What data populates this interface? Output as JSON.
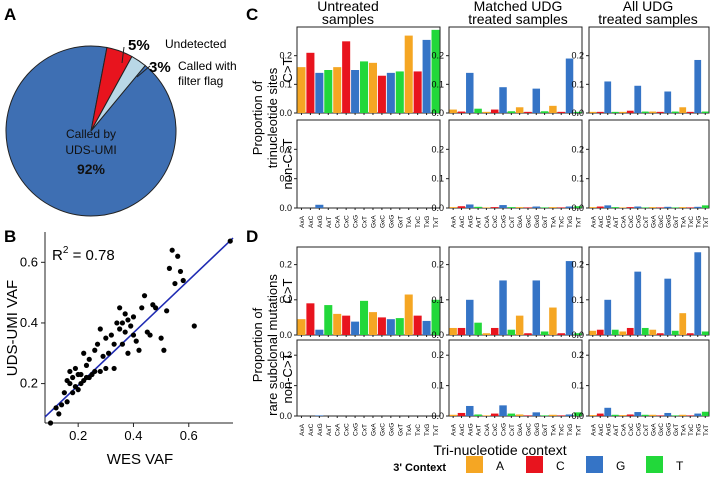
{
  "panel_labels": {
    "a": "A",
    "b": "B",
    "c": "C",
    "d": "D"
  },
  "colors": {
    "A": "#f5a623",
    "C": "#e8141e",
    "G": "#3574c6",
    "T": "#22d83a",
    "pie_called": "#3e6fb3",
    "pie_undetected": "#e8141e",
    "pie_flag": "#b9d7e6",
    "regression_line": "#1f2bb3",
    "points": "#000000"
  },
  "contexts": [
    "AxA",
    "AxC",
    "AxG",
    "AxT",
    "CxA",
    "CxC",
    "CxG",
    "CxT",
    "GxA",
    "GxC",
    "GxG",
    "GxT",
    "TxA",
    "TxC",
    "TxG",
    "TxT"
  ],
  "column_titles": [
    "Untreated samples",
    "Matched UDG treated samples",
    "All UDG treated samples"
  ],
  "x_axis_title": "Tri-nucleotide context",
  "legend": {
    "title": "3' Context",
    "items": [
      "A",
      "C",
      "G",
      "T"
    ]
  },
  "c_ylabel": {
    "line1": "Proportion of",
    "line2": "trinucleotide sites"
  },
  "d_ylabel": {
    "line1": "Proportion of",
    "line2": "rare subclonal mutations"
  },
  "row_labels": {
    "ct": "C>T",
    "nonct": "non-C>T"
  },
  "chart_data": [
    {
      "type": "pie",
      "panel": "A",
      "slices": [
        {
          "label": "Called by UDS-UMI",
          "value": 92,
          "pct_text": "92%"
        },
        {
          "label": "Undetected",
          "value": 5,
          "pct_text": "5%"
        },
        {
          "label": "Called with filter flag",
          "value": 3,
          "pct_text": "3%"
        }
      ],
      "label_lines": {
        "called": [
          "Called by",
          "UDS-UMI"
        ],
        "flag": [
          "Called with",
          "filter flag"
        ],
        "undetected": [
          "Undetected"
        ]
      }
    },
    {
      "type": "scatter",
      "panel": "B",
      "xlabel": "WES VAF",
      "ylabel": "UDS-UMI VAF",
      "annotation": "R",
      "annotation_sup": "2",
      "annotation_value": " = 0.78",
      "xlim": [
        0.08,
        0.76
      ],
      "ylim": [
        0.07,
        0.7
      ],
      "xticks": [
        0.2,
        0.4,
        0.6
      ],
      "yticks": [
        0.2,
        0.4,
        0.6
      ],
      "xtick_labels": [
        "0.2",
        "0.4",
        "0.6"
      ],
      "ytick_labels": [
        "0.2",
        "0.4",
        "0.6"
      ],
      "fit_line": {
        "x": [
          0.08,
          0.76
        ],
        "y": [
          0.09,
          0.68
        ]
      },
      "points": [
        [
          0.1,
          0.07
        ],
        [
          0.12,
          0.12
        ],
        [
          0.13,
          0.1
        ],
        [
          0.14,
          0.13
        ],
        [
          0.15,
          0.17
        ],
        [
          0.16,
          0.14
        ],
        [
          0.16,
          0.21
        ],
        [
          0.17,
          0.24
        ],
        [
          0.17,
          0.2
        ],
        [
          0.18,
          0.22
        ],
        [
          0.18,
          0.17
        ],
        [
          0.19,
          0.19
        ],
        [
          0.19,
          0.25
        ],
        [
          0.2,
          0.18
        ],
        [
          0.2,
          0.23
        ],
        [
          0.21,
          0.2
        ],
        [
          0.21,
          0.23
        ],
        [
          0.22,
          0.21
        ],
        [
          0.22,
          0.3
        ],
        [
          0.23,
          0.22
        ],
        [
          0.23,
          0.26
        ],
        [
          0.24,
          0.22
        ],
        [
          0.24,
          0.28
        ],
        [
          0.25,
          0.23
        ],
        [
          0.26,
          0.31
        ],
        [
          0.26,
          0.24
        ],
        [
          0.27,
          0.33
        ],
        [
          0.28,
          0.24
        ],
        [
          0.28,
          0.38
        ],
        [
          0.29,
          0.29
        ],
        [
          0.3,
          0.25
        ],
        [
          0.3,
          0.35
        ],
        [
          0.31,
          0.3
        ],
        [
          0.32,
          0.36
        ],
        [
          0.33,
          0.25
        ],
        [
          0.33,
          0.33
        ],
        [
          0.34,
          0.4
        ],
        [
          0.35,
          0.38
        ],
        [
          0.35,
          0.45
        ],
        [
          0.36,
          0.33
        ],
        [
          0.36,
          0.4
        ],
        [
          0.37,
          0.37
        ],
        [
          0.37,
          0.43
        ],
        [
          0.38,
          0.41
        ],
        [
          0.38,
          0.3
        ],
        [
          0.39,
          0.39
        ],
        [
          0.4,
          0.36
        ],
        [
          0.4,
          0.42
        ],
        [
          0.41,
          0.34
        ],
        [
          0.42,
          0.31
        ],
        [
          0.43,
          0.45
        ],
        [
          0.44,
          0.49
        ],
        [
          0.45,
          0.37
        ],
        [
          0.46,
          0.36
        ],
        [
          0.47,
          0.46
        ],
        [
          0.48,
          0.45
        ],
        [
          0.5,
          0.35
        ],
        [
          0.51,
          0.31
        ],
        [
          0.52,
          0.44
        ],
        [
          0.53,
          0.58
        ],
        [
          0.54,
          0.64
        ],
        [
          0.55,
          0.53
        ],
        [
          0.56,
          0.62
        ],
        [
          0.57,
          0.57
        ],
        [
          0.58,
          0.54
        ],
        [
          0.62,
          0.39
        ],
        [
          0.75,
          0.67
        ]
      ]
    },
    {
      "type": "bar",
      "panel": "C",
      "ylabel": "Proportion of trinucleotide sites",
      "rows": [
        {
          "label": "C>T",
          "ylim": [
            0,
            0.3
          ],
          "yticks": [
            0.0,
            0.1,
            0.2
          ],
          "series": [
            {
              "name": "Untreated samples",
              "values": [
                0.16,
                0.21,
                0.14,
                0.15,
                0.16,
                0.25,
                0.15,
                0.18,
                0.175,
                0.13,
                0.14,
                0.145,
                0.27,
                0.145,
                0.255,
                0.29
              ]
            },
            {
              "name": "Matched UDG treated samples",
              "values": [
                0.012,
                0.005,
                0.14,
                0.015,
                0.004,
                0.012,
                0.09,
                0.006,
                0.02,
                0.004,
                0.085,
                0.006,
                0.025,
                0.004,
                0.19,
                0.004
              ]
            },
            {
              "name": "All UDG treated samples",
              "values": [
                0.004,
                0.004,
                0.11,
                0.004,
                0.004,
                0.008,
                0.095,
                0.005,
                0.005,
                0.004,
                0.075,
                0.005,
                0.02,
                0.004,
                0.185,
                0.005
              ]
            }
          ]
        },
        {
          "label": "non-C>T",
          "ylim": [
            0,
            0.3
          ],
          "yticks": [
            0.0,
            0.1,
            0.2
          ],
          "series": [
            {
              "name": "Untreated samples",
              "values": [
                0,
                0,
                0.011,
                0,
                0,
                0,
                0,
                0,
                0,
                0,
                0,
                0,
                0,
                0,
                0,
                0
              ]
            },
            {
              "name": "Matched UDG treated samples",
              "values": [
                0.003,
                0.006,
                0.012,
                0.004,
                0.002,
                0.003,
                0.01,
                0.003,
                0.003,
                0.002,
                0.005,
                0.002,
                0.003,
                0.002,
                0.005,
                0.006
              ]
            },
            {
              "name": "All UDG treated samples",
              "values": [
                0.003,
                0.005,
                0.009,
                0.003,
                0.002,
                0.003,
                0.005,
                0.002,
                0.003,
                0.002,
                0.004,
                0.002,
                0.003,
                0.002,
                0.004,
                0.009
              ]
            }
          ]
        }
      ]
    },
    {
      "type": "bar",
      "panel": "D",
      "ylabel": "Proportion of rare subclonal mutations",
      "rows": [
        {
          "label": "C>T",
          "ylim": [
            0,
            0.25
          ],
          "yticks": [
            0.0,
            0.1,
            0.2
          ],
          "series": [
            {
              "name": "Untreated samples",
              "values": [
                0.045,
                0.09,
                0.015,
                0.085,
                0.06,
                0.055,
                0.038,
                0.097,
                0.065,
                0.05,
                0.045,
                0.048,
                0.115,
                0.055,
                0.04,
                0.1
              ]
            },
            {
              "name": "Matched UDG treated samples",
              "values": [
                0.02,
                0.02,
                0.1,
                0.035,
                0.005,
                0.02,
                0.155,
                0.015,
                0.055,
                0.005,
                0.155,
                0.01,
                0.078,
                0.005,
                0.21,
                0.005
              ]
            },
            {
              "name": "All UDG treated samples",
              "values": [
                0.012,
                0.015,
                0.1,
                0.015,
                0.01,
                0.02,
                0.18,
                0.02,
                0.015,
                0.005,
                0.16,
                0.012,
                0.062,
                0.005,
                0.235,
                0.01
              ]
            }
          ]
        },
        {
          "label": "non-C>T",
          "ylim": [
            0,
            0.25
          ],
          "yticks": [
            0.0,
            0.1,
            0.2
          ],
          "series": [
            {
              "name": "Untreated samples",
              "values": [
                0,
                0,
                0.002,
                0,
                0,
                0,
                0,
                0,
                0,
                0,
                0,
                0,
                0,
                0,
                0,
                0
              ]
            },
            {
              "name": "Matched UDG treated samples",
              "values": [
                0.004,
                0.01,
                0.033,
                0.005,
                0.002,
                0.008,
                0.035,
                0.008,
                0.005,
                0.002,
                0.012,
                0.002,
                0.004,
                0.002,
                0.005,
                0.012
              ]
            },
            {
              "name": "All UDG treated samples",
              "values": [
                0.003,
                0.008,
                0.027,
                0.004,
                0.003,
                0.005,
                0.013,
                0.004,
                0.004,
                0.002,
                0.01,
                0.002,
                0.004,
                0.002,
                0.008,
                0.014
              ]
            }
          ]
        }
      ]
    }
  ]
}
